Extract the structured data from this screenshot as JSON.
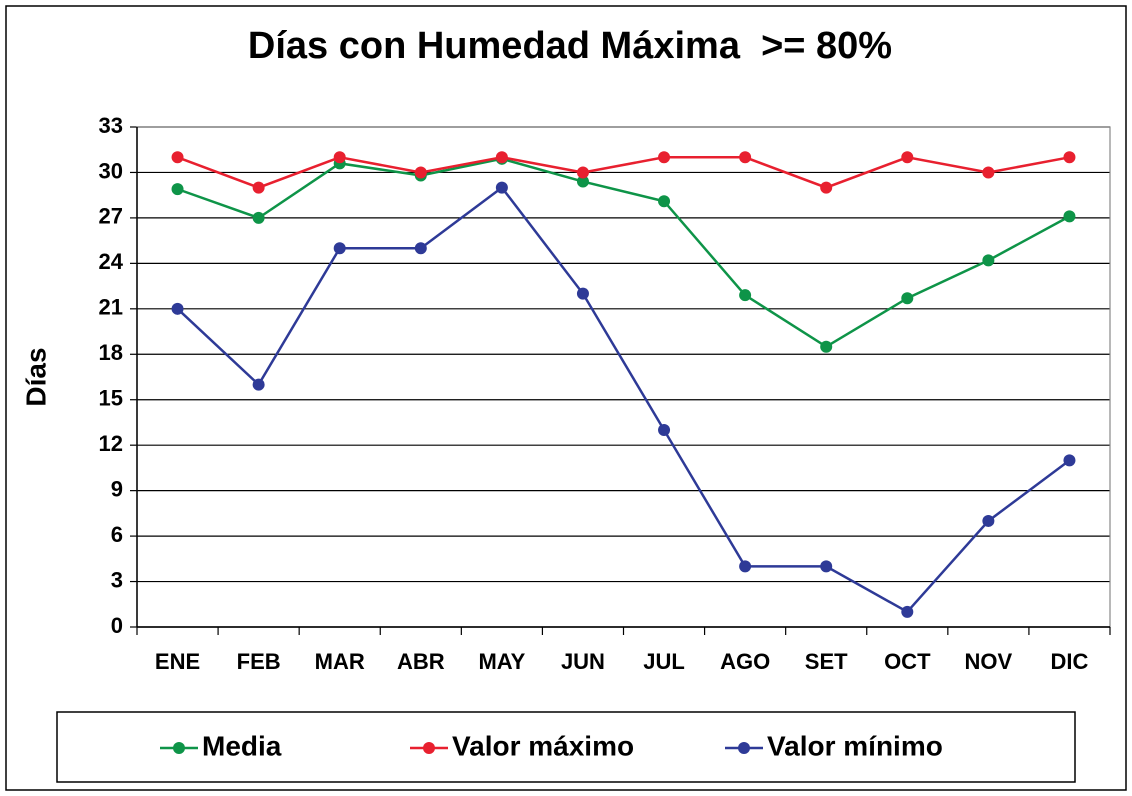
{
  "chart_data": {
    "type": "line",
    "title": "Días con Humedad Máxima  >= 80%",
    "y_label": "Días",
    "categories": [
      "ENE",
      "FEB",
      "MAR",
      "ABR",
      "MAY",
      "JUN",
      "JUL",
      "AGO",
      "SET",
      "OCT",
      "NOV",
      "DIC"
    ],
    "series": [
      {
        "name": "Media",
        "color": "#0e9448",
        "values": [
          28.9,
          27,
          30.6,
          29.8,
          30.9,
          29.4,
          28.1,
          21.9,
          18.5,
          21.7,
          24.2,
          27.1
        ]
      },
      {
        "name": "Valor máximo",
        "color": "#e8202f",
        "values": [
          31,
          29,
          31,
          30,
          31,
          30,
          31,
          31,
          29,
          31,
          30,
          31
        ]
      },
      {
        "name": "Valor mínimo",
        "color": "#2e3a97",
        "values": [
          21,
          16,
          25,
          25,
          29,
          22,
          13,
          4,
          4,
          1,
          7,
          11
        ]
      }
    ],
    "ylim": [
      0,
      33
    ],
    "yticks": [
      0,
      3,
      6,
      9,
      12,
      15,
      18,
      21,
      24,
      27,
      30,
      33
    ],
    "grid": true,
    "legend": "bottom"
  }
}
